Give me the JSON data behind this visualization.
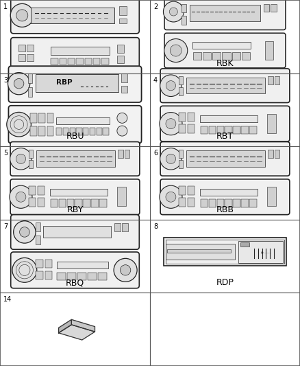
{
  "background_color": "#ffffff",
  "line_color": "#000000",
  "text_color": "#000000",
  "grid_line_color": "#888888",
  "cells": [
    {
      "row": 0,
      "col": 0,
      "item_num": "1",
      "label": "",
      "type": "radio_A"
    },
    {
      "row": 0,
      "col": 1,
      "item_num": "2",
      "label": "RBK",
      "type": "radio_B"
    },
    {
      "row": 1,
      "col": 0,
      "item_num": "3",
      "label": "RBU",
      "type": "radio_C"
    },
    {
      "row": 1,
      "col": 1,
      "item_num": "4",
      "label": "RBT",
      "type": "radio_D"
    },
    {
      "row": 2,
      "col": 0,
      "item_num": "5",
      "label": "RBY",
      "type": "radio_D"
    },
    {
      "row": 2,
      "col": 1,
      "item_num": "6",
      "label": "RBB",
      "type": "radio_E"
    },
    {
      "row": 3,
      "col": 0,
      "item_num": "7",
      "label": "RBQ",
      "type": "radio_F"
    },
    {
      "row": 3,
      "col": 1,
      "item_num": "8",
      "label": "RDP",
      "type": "changer"
    },
    {
      "row": 4,
      "col": 0,
      "item_num": "14",
      "label": "",
      "type": "disc"
    }
  ],
  "num_rows": 5,
  "num_cols": 2,
  "label_fontsize": 9,
  "num_fontsize": 7,
  "fig_w": 4.38,
  "fig_h": 5.33,
  "dpi": 100
}
